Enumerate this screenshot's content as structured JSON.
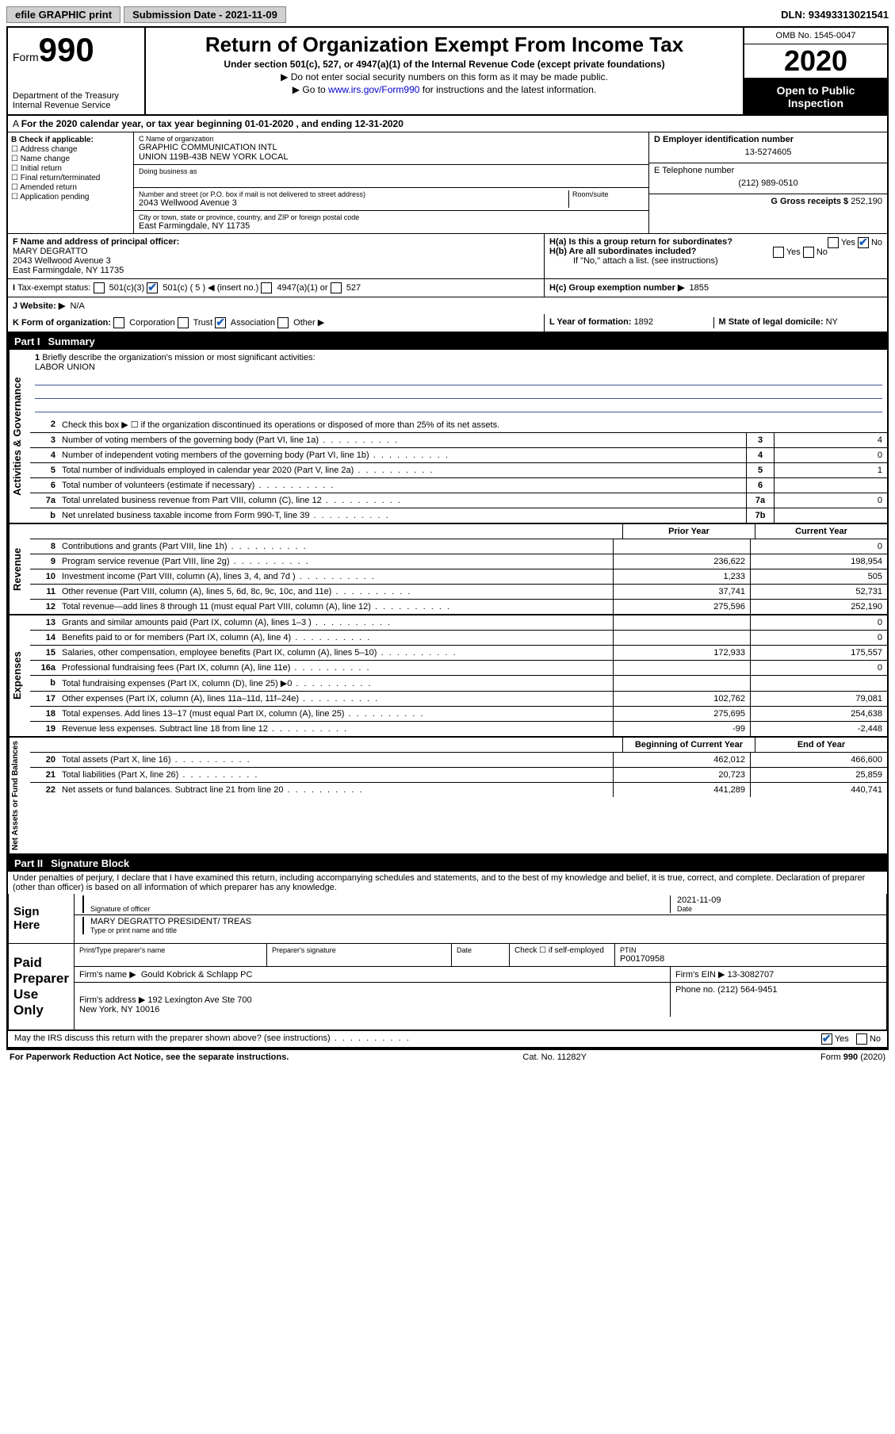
{
  "topbar": {
    "efile": "efile GRAPHIC print",
    "submission_label": "Submission Date - 2021-11-09",
    "dln": "DLN: 93493313021541"
  },
  "header": {
    "form_word": "Form",
    "form_num": "990",
    "dept": "Department of the Treasury\nInternal Revenue Service",
    "title": "Return of Organization Exempt From Income Tax",
    "subtitle": "Under section 501(c), 527, or 4947(a)(1) of the Internal Revenue Code (except private foundations)",
    "note1": "Do not enter social security numbers on this form as it may be made public.",
    "note2_pre": "Go to ",
    "note2_link": "www.irs.gov/Form990",
    "note2_post": " for instructions and the latest information.",
    "omb": "OMB No. 1545-0047",
    "year": "2020",
    "inspection": "Open to Public Inspection"
  },
  "period": {
    "text": "For the 2020 calendar year, or tax year beginning 01-01-2020   , and ending 12-31-2020"
  },
  "boxB": {
    "label": "B Check if applicable:",
    "items": [
      "Address change",
      "Name change",
      "Initial return",
      "Final return/terminated",
      "Amended return",
      "Application pending"
    ]
  },
  "boxC": {
    "name_lbl": "C Name of organization",
    "name": "GRAPHIC COMMUNICATION INTL\nUNION 119B-43B NEW YORK LOCAL",
    "dba_lbl": "Doing business as",
    "addr_lbl": "Number and street (or P.O. box if mail is not delivered to street address)",
    "addr": "2043 Wellwood Avenue 3",
    "room_lbl": "Room/suite",
    "city_lbl": "City or town, state or province, country, and ZIP or foreign postal code",
    "city": "East Farmingdale, NY  11735"
  },
  "boxDE": {
    "d_lbl": "D Employer identification number",
    "ein": "13-5274605",
    "e_lbl": "E Telephone number",
    "phone": "(212) 989-0510",
    "g_lbl": "G Gross receipts $ ",
    "g_val": "252,190"
  },
  "boxF": {
    "lbl": "F  Name and address of principal officer:",
    "name": "MARY DEGRATTO",
    "addr1": "2043 Wellwood Avenue 3",
    "addr2": "East Farmingdale, NY  11735"
  },
  "boxH": {
    "ha": "H(a)  Is this a group return for subordinates?",
    "hb": "H(b)  Are all subordinates included?",
    "hb_note": "If \"No,\" attach a list. (see instructions)",
    "hc_lbl": "H(c)  Group exemption number ▶",
    "hc_val": "1855",
    "yes": "Yes",
    "no": "No"
  },
  "status": {
    "i_lbl": "Tax-exempt status:",
    "c3": "501(c)(3)",
    "c": "501(c) ( 5 ) ◀ (insert no.)",
    "a1": "4947(a)(1) or",
    "s527": "527",
    "j_lbl": "Website: ▶",
    "j_val": "N/A"
  },
  "boxK": {
    "lbl": "K Form of organization:",
    "corp": "Corporation",
    "trust": "Trust",
    "assoc": "Association",
    "other": "Other ▶",
    "l_lbl": "L Year of formation: ",
    "l_val": "1892",
    "m_lbl": "M State of legal domicile: ",
    "m_val": "NY"
  },
  "part1": {
    "header": "Part I",
    "title": "Summary",
    "l1_lbl": "Briefly describe the organization's mission or most significant activities:",
    "l1_val": "LABOR UNION",
    "l2": "Check this box ▶ ☐  if the organization discontinued its operations or disposed of more than 25% of its net assets.",
    "gov_lines": [
      {
        "n": "3",
        "desc": "Number of voting members of the governing body (Part VI, line 1a)",
        "label": "3",
        "val": "4"
      },
      {
        "n": "4",
        "desc": "Number of independent voting members of the governing body (Part VI, line 1b)",
        "label": "4",
        "val": "0"
      },
      {
        "n": "5",
        "desc": "Total number of individuals employed in calendar year 2020 (Part V, line 2a)",
        "label": "5",
        "val": "1"
      },
      {
        "n": "6",
        "desc": "Total number of volunteers (estimate if necessary)",
        "label": "6",
        "val": ""
      },
      {
        "n": "7a",
        "desc": "Total unrelated business revenue from Part VIII, column (C), line 12",
        "label": "7a",
        "val": "0"
      },
      {
        "n": "b",
        "desc": "Net unrelated business taxable income from Form 990-T, line 39",
        "label": "7b",
        "val": ""
      }
    ],
    "prior_hdr": "Prior Year",
    "curr_hdr": "Current Year",
    "rev_lines": [
      {
        "n": "8",
        "desc": "Contributions and grants (Part VIII, line 1h)",
        "prior": "",
        "curr": "0"
      },
      {
        "n": "9",
        "desc": "Program service revenue (Part VIII, line 2g)",
        "prior": "236,622",
        "curr": "198,954"
      },
      {
        "n": "10",
        "desc": "Investment income (Part VIII, column (A), lines 3, 4, and 7d )",
        "prior": "1,233",
        "curr": "505"
      },
      {
        "n": "11",
        "desc": "Other revenue (Part VIII, column (A), lines 5, 6d, 8c, 9c, 10c, and 11e)",
        "prior": "37,741",
        "curr": "52,731"
      },
      {
        "n": "12",
        "desc": "Total revenue—add lines 8 through 11 (must equal Part VIII, column (A), line 12)",
        "prior": "275,596",
        "curr": "252,190"
      }
    ],
    "exp_lines": [
      {
        "n": "13",
        "desc": "Grants and similar amounts paid (Part IX, column (A), lines 1–3 )",
        "prior": "",
        "curr": "0"
      },
      {
        "n": "14",
        "desc": "Benefits paid to or for members (Part IX, column (A), line 4)",
        "prior": "",
        "curr": "0"
      },
      {
        "n": "15",
        "desc": "Salaries, other compensation, employee benefits (Part IX, column (A), lines 5–10)",
        "prior": "172,933",
        "curr": "175,557"
      },
      {
        "n": "16a",
        "desc": "Professional fundraising fees (Part IX, column (A), line 11e)",
        "prior": "",
        "curr": "0"
      },
      {
        "n": "b",
        "desc": "Total fundraising expenses (Part IX, column (D), line 25) ▶0",
        "prior": "GREY",
        "curr": "GREY"
      },
      {
        "n": "17",
        "desc": "Other expenses (Part IX, column (A), lines 11a–11d, 11f–24e)",
        "prior": "102,762",
        "curr": "79,081"
      },
      {
        "n": "18",
        "desc": "Total expenses. Add lines 13–17 (must equal Part IX, column (A), line 25)",
        "prior": "275,695",
        "curr": "254,638"
      },
      {
        "n": "19",
        "desc": "Revenue less expenses. Subtract line 18 from line 12",
        "prior": "-99",
        "curr": "-2,448"
      }
    ],
    "bal_hdr1": "Beginning of Current Year",
    "bal_hdr2": "End of Year",
    "bal_lines": [
      {
        "n": "20",
        "desc": "Total assets (Part X, line 16)",
        "prior": "462,012",
        "curr": "466,600"
      },
      {
        "n": "21",
        "desc": "Total liabilities (Part X, line 26)",
        "prior": "20,723",
        "curr": "25,859"
      },
      {
        "n": "22",
        "desc": "Net assets or fund balances. Subtract line 21 from line 20",
        "prior": "441,289",
        "curr": "440,741"
      }
    ],
    "side_gov": "Activities & Governance",
    "side_rev": "Revenue",
    "side_exp": "Expenses",
    "side_bal": "Net Assets or Fund Balances"
  },
  "part2": {
    "header": "Part II",
    "title": "Signature Block",
    "penalties": "Under penalties of perjury, I declare that I have examined this return, including accompanying schedules and statements, and to the best of my knowledge and belief, it is true, correct, and complete. Declaration of preparer (other than officer) is based on all information of which preparer has any knowledge.",
    "sign_here": "Sign Here",
    "sig_officer_lbl": "Signature of officer",
    "date_lbl": "Date",
    "date_val": "2021-11-09",
    "name_title": "MARY DEGRATTO  PRESIDENT/ TREAS",
    "name_title_lbl": "Type or print name and title",
    "paid": "Paid Preparer Use Only",
    "p_name_lbl": "Print/Type preparer's name",
    "p_sig_lbl": "Preparer's signature",
    "p_date_lbl": "Date",
    "p_check_lbl": "Check ☐ if self-employed",
    "ptin_lbl": "PTIN",
    "ptin": "P00170958",
    "firm_name_lbl": "Firm's name    ▶",
    "firm_name": "Gould Kobrick & Schlapp PC",
    "firm_ein_lbl": "Firm's EIN ▶",
    "firm_ein": "13-3082707",
    "firm_addr_lbl": "Firm's address ▶",
    "firm_addr": "192 Lexington Ave Ste 700\nNew York, NY  10016",
    "phone_lbl": "Phone no.",
    "phone": "(212) 564-9451",
    "discuss": "May the IRS discuss this return with the preparer shown above? (see instructions)"
  },
  "footer": {
    "left": "For Paperwork Reduction Act Notice, see the separate instructions.",
    "mid": "Cat. No. 11282Y",
    "right": "Form 990 (2020)"
  }
}
